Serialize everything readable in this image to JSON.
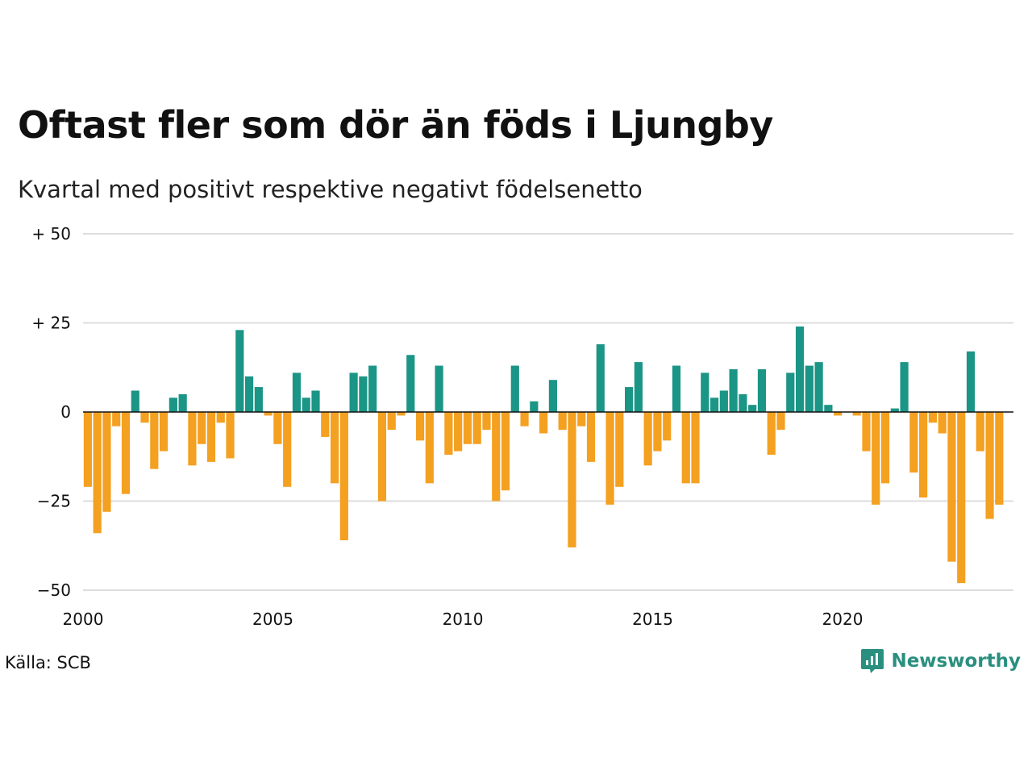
{
  "source": "Källa: SCB",
  "brand": {
    "name": "Newsworthy",
    "icon": "newsworthy-logo-icon",
    "color": "#2a8f7f"
  },
  "colors": {
    "positive": "#1b9585",
    "negative": "#f4a020",
    "grid": "#dddddd",
    "zero_line": "#111111"
  },
  "chart_data": {
    "type": "bar",
    "title": "Oftast fler som dör än föds i Ljungby",
    "subtitle": "Kvartal med positivt respektive negativt födelsenetto",
    "xlabel": "",
    "ylabel": "",
    "ylim": [
      -50,
      50
    ],
    "yticks": [
      50,
      25,
      0,
      -25,
      -50
    ],
    "ytick_labels": [
      "+ 50",
      "+ 25",
      "0",
      "−25",
      "−50"
    ],
    "xlim": [
      2000,
      2024.5
    ],
    "xticks": [
      2000,
      2005,
      2010,
      2015,
      2020
    ],
    "xtick_labels": [
      "2000",
      "2005",
      "2010",
      "2015",
      "2020"
    ],
    "grid": true,
    "start_year": 2000,
    "periods": "quarterly",
    "values": [
      -21,
      -34,
      -28,
      -4,
      -23,
      6,
      -3,
      -16,
      -11,
      4,
      5,
      -15,
      -9,
      -14,
      -3,
      -13,
      23,
      10,
      7,
      -1,
      -9,
      -21,
      11,
      4,
      6,
      -7,
      -20,
      -36,
      11,
      10,
      13,
      -25,
      -5,
      -1,
      16,
      -8,
      -20,
      13,
      -12,
      -11,
      -9,
      -9,
      -5,
      -25,
      -22,
      13,
      -4,
      3,
      -6,
      9,
      -5,
      -38,
      -4,
      -14,
      19,
      -26,
      -21,
      7,
      14,
      -15,
      -11,
      -8,
      13,
      -20,
      -20,
      11,
      4,
      6,
      12,
      5,
      2,
      12,
      -12,
      -5,
      11,
      24,
      13,
      14,
      2,
      -1,
      0,
      -1,
      -11,
      -26,
      -20,
      1,
      14,
      -17,
      -24,
      -3,
      -6,
      -42,
      -48,
      17,
      -11,
      -30,
      -26
    ]
  }
}
